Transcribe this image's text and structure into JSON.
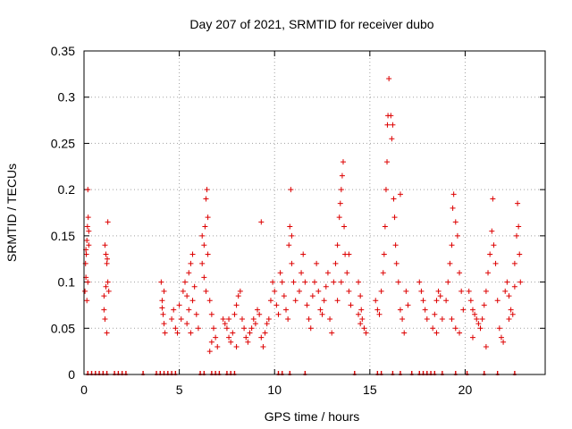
{
  "chart_data": {
    "type": "scatter",
    "title": "Day 207 of 2021, SRMTID for receiver dubo",
    "xlabel": "GPS time / hours",
    "ylabel": "SRMTID / TECUs",
    "xlim": [
      0,
      24.2
    ],
    "ylim": [
      0,
      0.35
    ],
    "x_ticks": [
      0,
      5,
      10,
      15,
      20
    ],
    "x_tick_labels": [
      "0",
      "5",
      "10",
      "15",
      "20"
    ],
    "y_ticks": [
      0,
      0.05,
      0.1,
      0.15,
      0.2,
      0.25,
      0.3,
      0.35
    ],
    "y_tick_labels": [
      "0",
      "0.05",
      "0.1",
      "0.15",
      "0.2",
      "0.25",
      "0.3",
      "0.35"
    ],
    "grid": true,
    "marker": "plus",
    "color": "#dd0000",
    "series": [
      {
        "name": "SRMTID",
        "points": [
          [
            0.05,
            0.09
          ],
          [
            0.1,
            0.105
          ],
          [
            0.12,
            0.13
          ],
          [
            0.15,
            0.145
          ],
          [
            0.18,
            0.16
          ],
          [
            0.2,
            0.2
          ],
          [
            0.22,
            0.17
          ],
          [
            0.25,
            0.14
          ],
          [
            0.08,
            0.12
          ],
          [
            0.15,
            0.08
          ],
          [
            0.2,
            0.1
          ],
          [
            0.1,
            0.135
          ],
          [
            0.25,
            0.155
          ],
          [
            1.1,
            0.14
          ],
          [
            1.15,
            0.13
          ],
          [
            1.2,
            0.12
          ],
          [
            1.25,
            0.1
          ],
          [
            1.05,
            0.07
          ],
          [
            1.1,
            0.06
          ],
          [
            1.2,
            0.045
          ],
          [
            1.25,
            0.165
          ],
          [
            1.3,
            0.09
          ],
          [
            1.15,
            0.095
          ],
          [
            1.22,
            0.125
          ],
          [
            1.05,
            0.085
          ],
          [
            4.05,
            0.1
          ],
          [
            4.1,
            0.08
          ],
          [
            4.15,
            0.065
          ],
          [
            4.2,
            0.055
          ],
          [
            4.25,
            0.045
          ],
          [
            4.1,
            0.072
          ],
          [
            4.2,
            0.09
          ],
          [
            4.6,
            0.06
          ],
          [
            4.7,
            0.07
          ],
          [
            4.8,
            0.05
          ],
          [
            4.9,
            0.045
          ],
          [
            5.0,
            0.075
          ],
          [
            5.1,
            0.06
          ],
          [
            5.2,
            0.09
          ],
          [
            5.3,
            0.1
          ],
          [
            5.4,
            0.085
          ],
          [
            5.5,
            0.07
          ],
          [
            5.6,
            0.12
          ],
          [
            5.7,
            0.13
          ],
          [
            5.5,
            0.11
          ],
          [
            5.8,
            0.095
          ],
          [
            5.9,
            0.065
          ],
          [
            6.0,
            0.05
          ],
          [
            5.4,
            0.055
          ],
          [
            5.6,
            0.045
          ],
          [
            5.7,
            0.08
          ],
          [
            6.2,
            0.12
          ],
          [
            6.3,
            0.14
          ],
          [
            6.35,
            0.16
          ],
          [
            6.4,
            0.19
          ],
          [
            6.45,
            0.2
          ],
          [
            6.5,
            0.17
          ],
          [
            6.3,
            0.105
          ],
          [
            6.4,
            0.09
          ],
          [
            6.6,
            0.08
          ],
          [
            6.7,
            0.065
          ],
          [
            6.8,
            0.05
          ],
          [
            6.9,
            0.04
          ],
          [
            7.0,
            0.03
          ],
          [
            6.6,
            0.025
          ],
          [
            6.7,
            0.035
          ],
          [
            6.5,
            0.13
          ],
          [
            6.2,
            0.15
          ],
          [
            7.3,
            0.06
          ],
          [
            7.4,
            0.055
          ],
          [
            7.5,
            0.05
          ],
          [
            7.6,
            0.04
          ],
          [
            7.7,
            0.035
          ],
          [
            7.8,
            0.045
          ],
          [
            7.9,
            0.065
          ],
          [
            8.0,
            0.075
          ],
          [
            8.1,
            0.085
          ],
          [
            8.2,
            0.09
          ],
          [
            8.3,
            0.06
          ],
          [
            8.4,
            0.05
          ],
          [
            8.5,
            0.04
          ],
          [
            8.6,
            0.035
          ],
          [
            8.7,
            0.045
          ],
          [
            8.8,
            0.05
          ],
          [
            8.9,
            0.06
          ],
          [
            9.0,
            0.055
          ],
          [
            9.1,
            0.07
          ],
          [
            9.2,
            0.065
          ],
          [
            9.3,
            0.04
          ],
          [
            9.4,
            0.03
          ],
          [
            9.5,
            0.045
          ],
          [
            9.6,
            0.055
          ],
          [
            9.7,
            0.06
          ],
          [
            9.3,
            0.165
          ],
          [
            8.0,
            0.03
          ],
          [
            7.6,
            0.06
          ],
          [
            9.8,
            0.08
          ],
          [
            9.9,
            0.1
          ],
          [
            10.0,
            0.09
          ],
          [
            10.1,
            0.075
          ],
          [
            10.2,
            0.065
          ],
          [
            10.3,
            0.11
          ],
          [
            10.4,
            0.1
          ],
          [
            10.5,
            0.085
          ],
          [
            10.6,
            0.07
          ],
          [
            10.7,
            0.06
          ],
          [
            10.75,
            0.14
          ],
          [
            10.8,
            0.16
          ],
          [
            10.85,
            0.2
          ],
          [
            10.9,
            0.15
          ],
          [
            10.9,
            0.12
          ],
          [
            11.0,
            0.1
          ],
          [
            11.1,
            0.08
          ],
          [
            11.3,
            0.09
          ],
          [
            11.4,
            0.11
          ],
          [
            11.5,
            0.13
          ],
          [
            11.6,
            0.1
          ],
          [
            11.7,
            0.075
          ],
          [
            11.8,
            0.06
          ],
          [
            11.9,
            0.05
          ],
          [
            12.0,
            0.085
          ],
          [
            12.1,
            0.1
          ],
          [
            12.2,
            0.12
          ],
          [
            12.3,
            0.09
          ],
          [
            12.4,
            0.07
          ],
          [
            12.5,
            0.065
          ],
          [
            12.6,
            0.08
          ],
          [
            12.7,
            0.095
          ],
          [
            12.8,
            0.11
          ],
          [
            12.9,
            0.06
          ],
          [
            13.0,
            0.045
          ],
          [
            13.1,
            0.1
          ],
          [
            13.2,
            0.12
          ],
          [
            13.3,
            0.14
          ],
          [
            13.4,
            0.17
          ],
          [
            13.45,
            0.185
          ],
          [
            13.5,
            0.2
          ],
          [
            13.55,
            0.215
          ],
          [
            13.6,
            0.23
          ],
          [
            13.65,
            0.16
          ],
          [
            13.7,
            0.13
          ],
          [
            13.8,
            0.11
          ],
          [
            13.9,
            0.09
          ],
          [
            14.0,
            0.075
          ],
          [
            13.3,
            0.08
          ],
          [
            13.5,
            0.1
          ],
          [
            13.9,
            0.13
          ],
          [
            14.4,
            0.1
          ],
          [
            14.5,
            0.085
          ],
          [
            14.55,
            0.07
          ],
          [
            14.6,
            0.06
          ],
          [
            14.7,
            0.05
          ],
          [
            14.8,
            0.045
          ],
          [
            14.4,
            0.065
          ],
          [
            14.5,
            0.055
          ],
          [
            15.3,
            0.08
          ],
          [
            15.4,
            0.07
          ],
          [
            15.5,
            0.065
          ],
          [
            15.6,
            0.09
          ],
          [
            15.7,
            0.11
          ],
          [
            15.75,
            0.13
          ],
          [
            15.8,
            0.16
          ],
          [
            15.85,
            0.2
          ],
          [
            15.9,
            0.23
          ],
          [
            15.92,
            0.27
          ],
          [
            15.95,
            0.28
          ],
          [
            16.0,
            0.32
          ],
          [
            16.1,
            0.28
          ],
          [
            16.15,
            0.255
          ],
          [
            16.2,
            0.27
          ],
          [
            16.25,
            0.19
          ],
          [
            16.3,
            0.17
          ],
          [
            16.35,
            0.14
          ],
          [
            16.4,
            0.12
          ],
          [
            16.5,
            0.1
          ],
          [
            16.6,
            0.07
          ],
          [
            16.7,
            0.06
          ],
          [
            16.8,
            0.045
          ],
          [
            16.9,
            0.09
          ],
          [
            17.0,
            0.075
          ],
          [
            16.6,
            0.195
          ],
          [
            17.6,
            0.1
          ],
          [
            17.7,
            0.09
          ],
          [
            17.8,
            0.08
          ],
          [
            17.9,
            0.07
          ],
          [
            18.0,
            0.06
          ],
          [
            18.3,
            0.05
          ],
          [
            18.4,
            0.065
          ],
          [
            18.5,
            0.08
          ],
          [
            18.6,
            0.09
          ],
          [
            18.7,
            0.085
          ],
          [
            18.8,
            0.06
          ],
          [
            18.5,
            0.045
          ],
          [
            19.0,
            0.08
          ],
          [
            19.1,
            0.1
          ],
          [
            19.2,
            0.12
          ],
          [
            19.3,
            0.14
          ],
          [
            19.35,
            0.18
          ],
          [
            19.4,
            0.195
          ],
          [
            19.5,
            0.165
          ],
          [
            19.6,
            0.15
          ],
          [
            19.7,
            0.11
          ],
          [
            19.8,
            0.09
          ],
          [
            19.9,
            0.07
          ],
          [
            19.3,
            0.06
          ],
          [
            19.5,
            0.05
          ],
          [
            19.7,
            0.045
          ],
          [
            20.2,
            0.09
          ],
          [
            20.3,
            0.08
          ],
          [
            20.4,
            0.07
          ],
          [
            20.5,
            0.065
          ],
          [
            20.6,
            0.06
          ],
          [
            20.7,
            0.055
          ],
          [
            20.8,
            0.05
          ],
          [
            20.9,
            0.06
          ],
          [
            21.0,
            0.075
          ],
          [
            21.1,
            0.09
          ],
          [
            21.2,
            0.11
          ],
          [
            21.3,
            0.13
          ],
          [
            21.4,
            0.155
          ],
          [
            21.45,
            0.19
          ],
          [
            21.5,
            0.14
          ],
          [
            21.6,
            0.12
          ],
          [
            21.7,
            0.08
          ],
          [
            21.8,
            0.05
          ],
          [
            21.9,
            0.04
          ],
          [
            22.0,
            0.035
          ],
          [
            21.1,
            0.03
          ],
          [
            20.4,
            0.04
          ],
          [
            22.1,
            0.09
          ],
          [
            22.2,
            0.1
          ],
          [
            22.3,
            0.085
          ],
          [
            22.4,
            0.07
          ],
          [
            22.5,
            0.065
          ],
          [
            22.6,
            0.12
          ],
          [
            22.7,
            0.15
          ],
          [
            22.75,
            0.185
          ],
          [
            22.8,
            0.16
          ],
          [
            22.85,
            0.13
          ],
          [
            22.9,
            0.1
          ],
          [
            22.6,
            0.095
          ],
          [
            22.3,
            0.06
          ]
        ],
        "zero_x": [
          0.2,
          0.4,
          0.6,
          0.8,
          1.0,
          1.2,
          1.6,
          1.8,
          2.0,
          2.2,
          3.1,
          3.8,
          4.0,
          4.2,
          4.4,
          4.6,
          4.8,
          6.1,
          6.3,
          6.7,
          6.9,
          7.1,
          7.5,
          7.7,
          7.9,
          10.2,
          10.4,
          10.8,
          11.6,
          14.2,
          15.4,
          15.6,
          16.2,
          16.6,
          17.2,
          17.6,
          17.8,
          18.0,
          18.2,
          18.4,
          18.8,
          19.5,
          20.1,
          21.0,
          21.7,
          22.6
        ]
      }
    ]
  }
}
